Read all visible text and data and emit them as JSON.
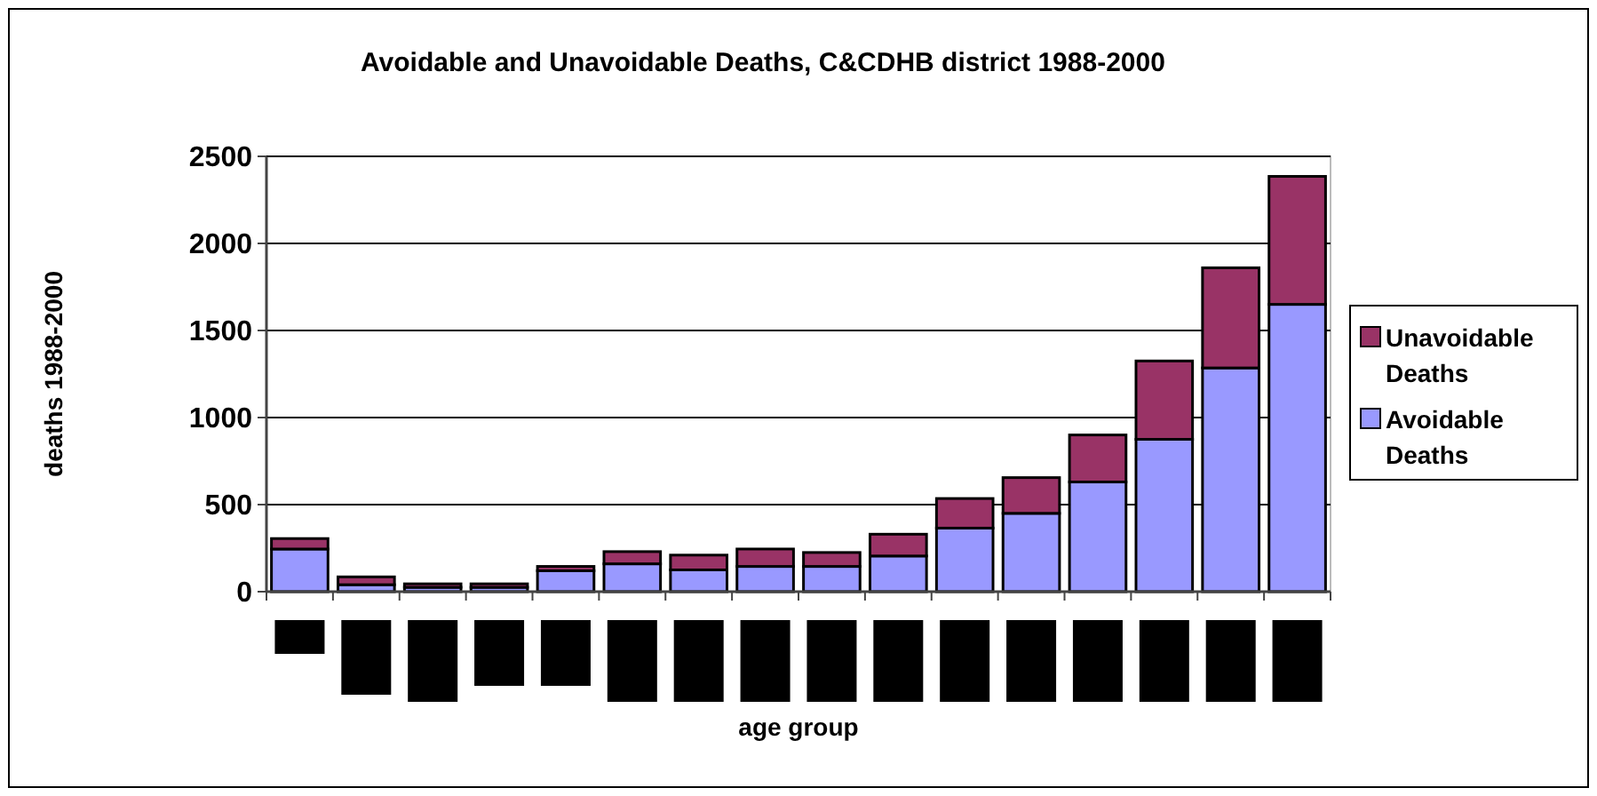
{
  "chart_data": {
    "type": "bar",
    "title": "Avoidable and Unavoidable Deaths, C&CDHB district 1988-2000",
    "xlabel": "age group",
    "ylabel": "deaths 1988-2000",
    "categories": [
      null,
      null,
      null,
      null,
      null,
      null,
      null,
      null,
      null,
      null,
      null,
      null,
      null,
      null,
      null,
      null
    ],
    "stacked": true,
    "series": [
      {
        "name": "Avoidable Deaths",
        "color": "#9999ff",
        "values": [
          245,
          40,
          25,
          25,
          120,
          160,
          125,
          145,
          145,
          205,
          365,
          450,
          630,
          875,
          1285,
          1650
        ]
      },
      {
        "name": "Unavoidable Deaths",
        "color": "#993366",
        "values": [
          60,
          45,
          20,
          20,
          25,
          70,
          85,
          100,
          80,
          125,
          170,
          205,
          270,
          450,
          575,
          735
        ]
      }
    ],
    "ylim": [
      0,
      2500
    ],
    "yticks": [
      0,
      500,
      1000,
      1500,
      2000,
      2500
    ],
    "grid": "y",
    "legend": "right"
  }
}
